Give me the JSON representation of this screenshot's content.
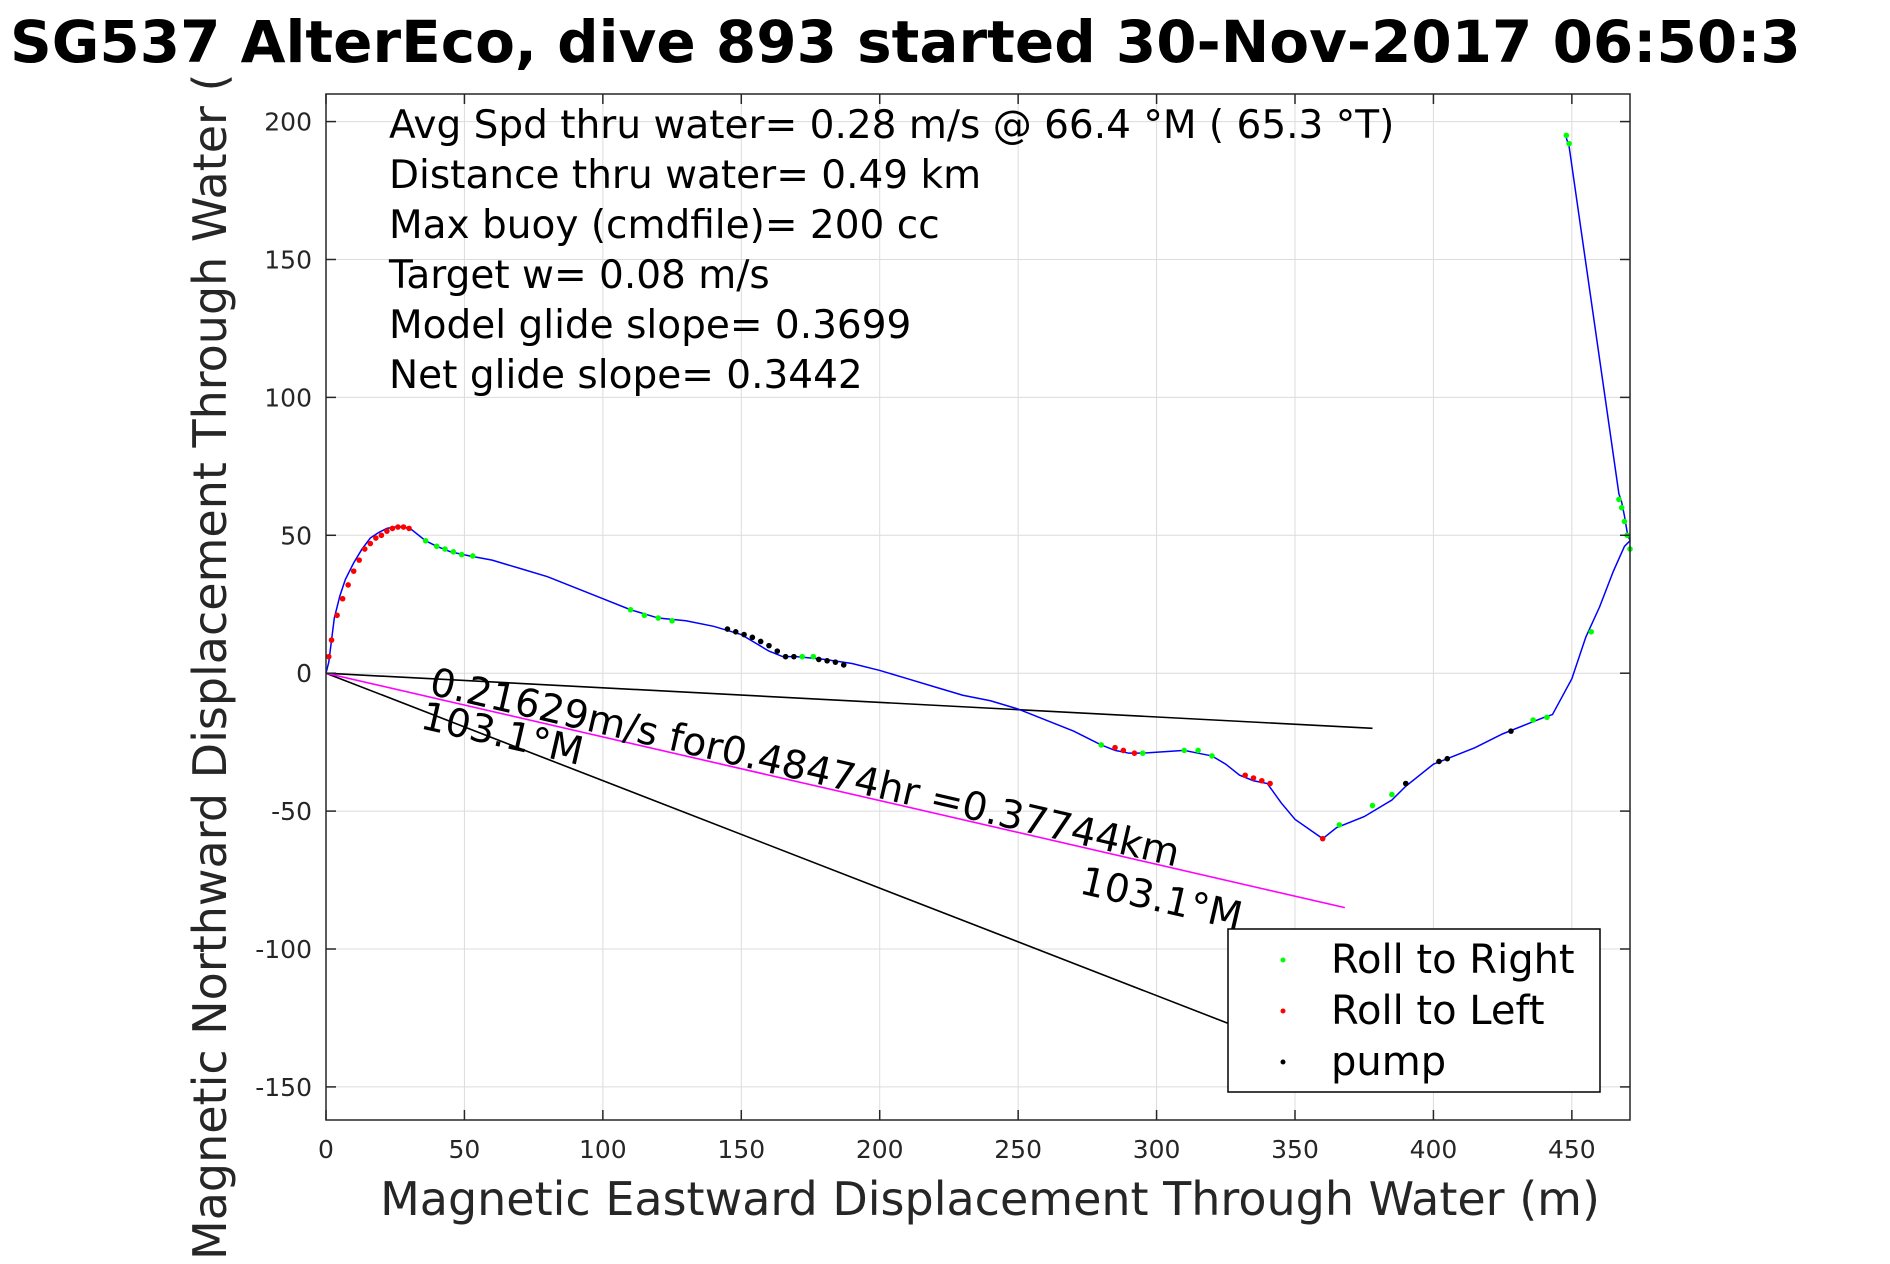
{
  "chart_data": {
    "type": "scatter",
    "title": "SG537 AlterEco, dive 893 started 30-Nov-2017 06:50:3",
    "xlabel": "Magnetic Eastward Displacement Through Water (m)",
    "ylabel": "Magnetic Northward Displacement Through Water (",
    "xlim": [
      0,
      471
    ],
    "ylim": [
      -162,
      210
    ],
    "xticks": [
      0,
      50,
      100,
      150,
      200,
      250,
      300,
      350,
      400,
      450
    ],
    "yticks": [
      -150,
      -100,
      -50,
      0,
      50,
      100,
      150,
      200
    ],
    "xtick_labels": [
      "0",
      "50",
      "100",
      "150",
      "200",
      "250",
      "300",
      "350",
      "400",
      "450"
    ],
    "ytick_labels": [
      "-150",
      "-100",
      "-50",
      "0",
      "50",
      "100",
      "150",
      "200"
    ],
    "grid": true,
    "legend_position": "bottom-right",
    "info_lines": [
      "Avg Spd thru water=  0.28 m/s @  66.4 °M ( 65.3 °T)",
      "Distance thru water=  0.49 km",
      "Max buoy (cmdfile)= 200 cc",
      "Target w= 0.08 m/s",
      "Model glide slope= 0.3699",
      "Net glide slope= 0.3442"
    ],
    "annotations": {
      "current_text": "0.21629m/s for0.48474hr =0.37744km",
      "heading_start": "103.1°M",
      "heading_end": "103.1°M"
    },
    "reference_lines": [
      {
        "color": "#000000",
        "x": [
          0,
          378
        ],
        "y": [
          0,
          -20
        ]
      },
      {
        "color": "#000000",
        "x": [
          0,
          367
        ],
        "y": [
          0,
          -143
        ]
      },
      {
        "color": "#ff00ff",
        "x": [
          0,
          368
        ],
        "y": [
          0,
          -85
        ]
      }
    ],
    "track": {
      "color": "#0000ff",
      "x": [
        0,
        1,
        2,
        3,
        5,
        7,
        10,
        13,
        16,
        19,
        22,
        25,
        28,
        31,
        36,
        40,
        45,
        52,
        60,
        70,
        80,
        90,
        100,
        110,
        120,
        130,
        140,
        150,
        160,
        165,
        170,
        180,
        190,
        200,
        210,
        220,
        230,
        240,
        250,
        260,
        270,
        280,
        285,
        290,
        295,
        310,
        315,
        320,
        325,
        330,
        335,
        340,
        345,
        350,
        360,
        365,
        375,
        385,
        390,
        400,
        405,
        415,
        425,
        435,
        440,
        443,
        450,
        455,
        460,
        465,
        469,
        471,
        470,
        469,
        468,
        467,
        449,
        448
      ],
      "y": [
        0,
        4,
        12,
        20,
        28,
        34,
        40,
        45,
        49,
        51,
        52.5,
        53,
        53,
        52,
        48,
        46,
        44,
        42.5,
        41,
        38,
        35,
        31,
        27,
        23,
        20,
        19,
        17,
        14,
        8,
        6,
        6,
        5,
        3.5,
        1,
        -2,
        -5,
        -8,
        -10,
        -13,
        -17,
        -21,
        -26,
        -28,
        -29,
        -29,
        -28,
        -29,
        -30,
        -33,
        -37,
        -39,
        -40,
        -47,
        -53,
        -60,
        -56,
        -52,
        -46,
        -41,
        -33,
        -31,
        -27,
        -22,
        -18,
        -16,
        -15,
        -2,
        13,
        24,
        37,
        46,
        48,
        51,
        57,
        62,
        65,
        191,
        194
      ]
    },
    "series": [
      {
        "name": "Roll to Right",
        "color": "#00ff00",
        "x": [
          36,
          40,
          43,
          46,
          49,
          53,
          110,
          115,
          120,
          125,
          172,
          176,
          280,
          295,
          310,
          315,
          320,
          366,
          378,
          385,
          436,
          441,
          457,
          471,
          470,
          469,
          468,
          467,
          449,
          448
        ],
        "y": [
          48,
          46,
          45,
          44,
          43,
          42.5,
          23,
          21,
          20,
          19,
          6,
          6,
          -26,
          -29,
          -28,
          -28,
          -30,
          -55,
          -48,
          -44,
          -17,
          -16,
          15,
          45,
          50,
          55,
          60,
          63,
          192,
          195
        ]
      },
      {
        "name": "Roll to Left",
        "color": "#ff0000",
        "x": [
          1,
          2,
          4,
          6,
          8,
          10,
          12,
          14,
          16,
          18,
          20,
          22,
          24,
          26,
          28,
          30,
          285,
          288,
          292,
          332,
          335,
          338,
          341,
          360
        ],
        "y": [
          6,
          12,
          21,
          27,
          32,
          37,
          41,
          45,
          47,
          49,
          50,
          51.5,
          52.5,
          53,
          53,
          52.5,
          -27,
          -28,
          -29,
          -37,
          -38,
          -39,
          -40,
          -60
        ]
      },
      {
        "name": "pump",
        "color": "#000000",
        "x": [
          145,
          148,
          151,
          154,
          157,
          160,
          163,
          166,
          169,
          178,
          181,
          184,
          187,
          390,
          402,
          405,
          428
        ],
        "y": [
          16,
          15,
          14,
          13,
          11.5,
          10,
          8,
          6,
          6,
          5,
          4.5,
          4,
          3,
          -40,
          -32,
          -31,
          -21
        ]
      }
    ]
  }
}
